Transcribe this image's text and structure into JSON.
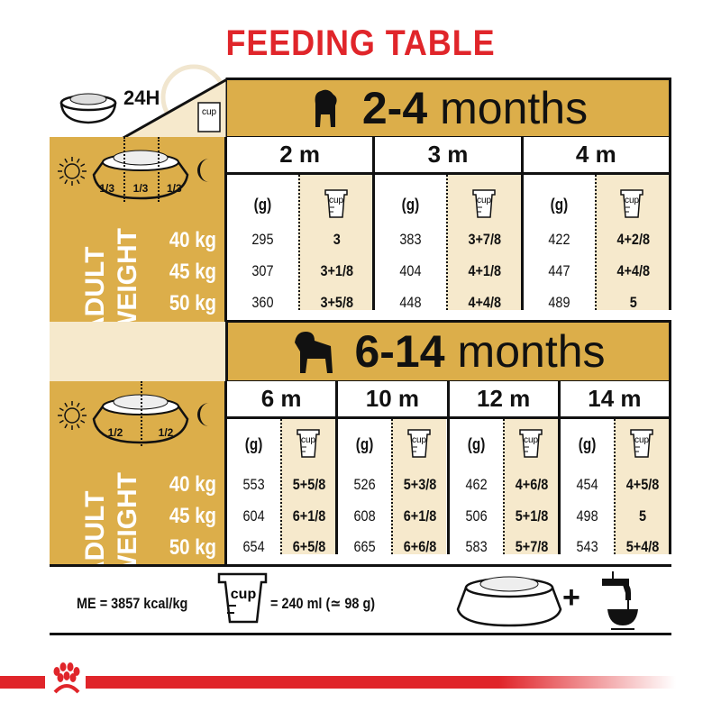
{
  "title": "FEEDING TABLE",
  "header_24h": "24H",
  "cup_label": "cup",
  "colors": {
    "brand_red": "#e0252a",
    "gold": "#dcae4a",
    "cream": "#f6e9cc"
  },
  "side": {
    "adult": "ADULT",
    "weight": "WEIGHT",
    "weights": [
      "40 kg",
      "45 kg",
      "50 kg"
    ],
    "fraction_third": "1/3",
    "fraction_half": "1/2"
  },
  "grams_label": "(g)",
  "section1": {
    "range": "2-4",
    "unit": "months",
    "months": [
      {
        "label": "2 m",
        "grams": [
          "295",
          "307",
          "360"
        ],
        "cups": [
          "3",
          "3+1/8",
          "3+5/8"
        ]
      },
      {
        "label": "3 m",
        "grams": [
          "383",
          "404",
          "448"
        ],
        "cups": [
          "3+7/8",
          "4+1/8",
          "4+4/8"
        ]
      },
      {
        "label": "4 m",
        "grams": [
          "422",
          "447",
          "489"
        ],
        "cups": [
          "4+2/8",
          "4+4/8",
          "5"
        ]
      }
    ]
  },
  "section2": {
    "range": "6-14",
    "unit": "months",
    "months": [
      {
        "label": "6 m",
        "grams": [
          "553",
          "604",
          "654"
        ],
        "cups": [
          "5+5/8",
          "6+1/8",
          "6+5/8"
        ]
      },
      {
        "label": "10 m",
        "grams": [
          "526",
          "608",
          "665"
        ],
        "cups": [
          "5+3/8",
          "6+1/8",
          "6+6/8"
        ]
      },
      {
        "label": "12 m",
        "grams": [
          "462",
          "506",
          "583"
        ],
        "cups": [
          "4+6/8",
          "5+1/8",
          "5+7/8"
        ]
      },
      {
        "label": "14 m",
        "grams": [
          "454",
          "498",
          "543"
        ],
        "cups": [
          "4+5/8",
          "5",
          "5+4/8"
        ]
      }
    ]
  },
  "footer": {
    "me": "ME = 3857 kcal/kg",
    "cup_eq": "= 240 ml (≃ 98 g)",
    "plus": "+"
  }
}
